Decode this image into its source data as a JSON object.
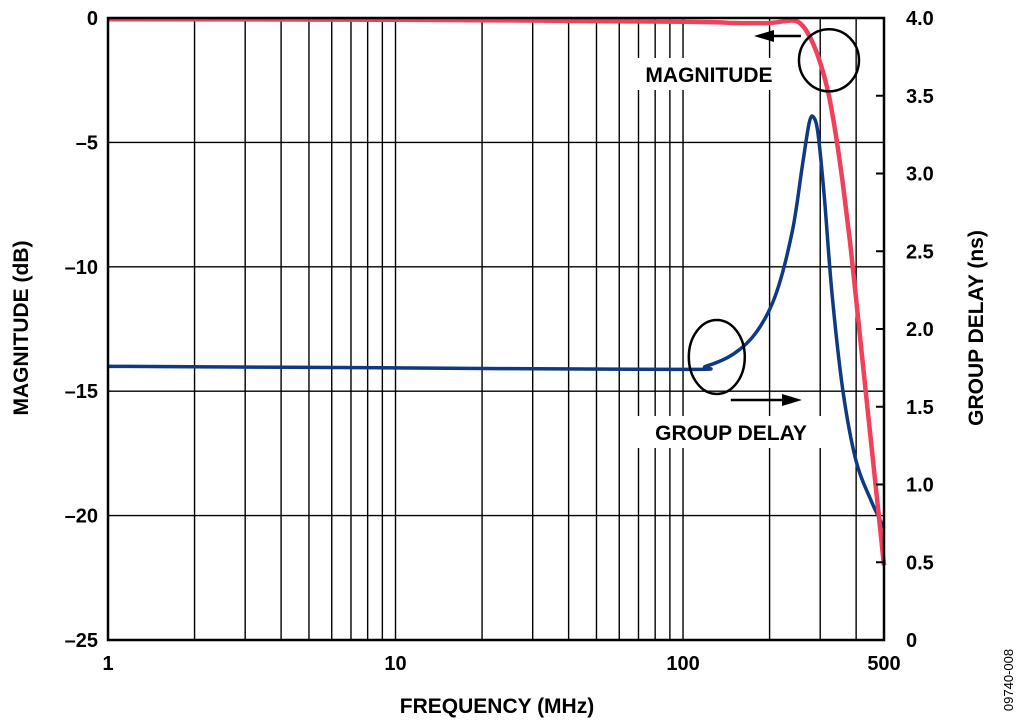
{
  "figure_id": "09740-008",
  "chart_data": {
    "type": "line",
    "title": "",
    "xlabel": "FREQUENCY (MHz)",
    "ylabel": "MAGNITUDE (dB)",
    "y2label": "GROUP DELAY (ns)",
    "x_scale": "log",
    "xlim": [
      1,
      500
    ],
    "ylim": [
      -25,
      0
    ],
    "y2lim": [
      0,
      4.0
    ],
    "x_ticks": [
      1,
      10,
      100,
      500
    ],
    "x_tick_labels": [
      "1",
      "10",
      "100",
      "500"
    ],
    "y_ticks": [
      0,
      -5,
      -10,
      -15,
      -20,
      -25
    ],
    "y_tick_labels": [
      "0",
      "–5",
      "–10",
      "–15",
      "–20",
      "–25"
    ],
    "y2_ticks": [
      4.0,
      3.5,
      3.0,
      2.5,
      2.0,
      1.5,
      1.0,
      0.5,
      0
    ],
    "y2_tick_labels": [
      "4.0",
      "3.5",
      "3.0",
      "2.5",
      "2.0",
      "1.5",
      "1.0",
      "0.5",
      "0"
    ],
    "grid": true,
    "legend": "none",
    "series": [
      {
        "name": "MAGNITUDE",
        "axis": "left",
        "color": "#f0405a",
        "x": [
          1,
          10,
          100,
          150,
          200,
          240,
          260,
          280,
          300,
          320,
          340,
          360,
          380,
          400,
          430,
          460,
          500
        ],
        "y": [
          -0.05,
          -0.07,
          -0.15,
          -0.2,
          -0.2,
          -0.1,
          -0.3,
          -0.9,
          -1.8,
          -3.0,
          -4.7,
          -6.7,
          -8.9,
          -11.3,
          -14.8,
          -18.0,
          -22.0
        ]
      },
      {
        "name": "GROUP DELAY",
        "axis": "right",
        "color": "#0d3a82",
        "x": [
          1,
          10,
          100,
          120,
          150,
          180,
          210,
          240,
          260,
          275,
          285,
          295,
          310,
          330,
          360,
          400,
          450,
          500
        ],
        "y": [
          1.76,
          1.75,
          1.74,
          1.76,
          1.84,
          1.98,
          2.22,
          2.63,
          3.05,
          3.33,
          3.36,
          3.25,
          2.85,
          2.22,
          1.6,
          1.15,
          0.9,
          0.72
        ]
      }
    ],
    "annotations": [
      {
        "text": "MAGNITUDE",
        "points_to_axis": "left"
      },
      {
        "text": "GROUP DELAY",
        "points_to_axis": "right"
      }
    ]
  }
}
